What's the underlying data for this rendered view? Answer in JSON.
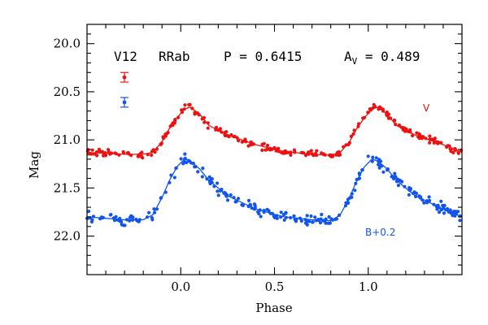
{
  "chart_data": {
    "type": "scatter",
    "title": "",
    "xlabel": "Phase",
    "ylabel": "Mag",
    "xlim": [
      -0.5,
      1.5
    ],
    "ylim": [
      22.4,
      19.8
    ],
    "y_inverted": true,
    "x_ticks": [
      "0.0",
      "0.5",
      "1.0"
    ],
    "x_tick_values": [
      0.0,
      0.5,
      1.0
    ],
    "y_ticks": [
      "20.0",
      "20.5",
      "21.0",
      "21.5",
      "22.0"
    ],
    "y_tick_values": [
      20.0,
      20.5,
      21.0,
      21.5,
      22.0
    ],
    "grid": false,
    "annotations": {
      "star": "V12",
      "type": "RRab",
      "period": "P = 0.6415",
      "amp_label": "A",
      "amp_sub": "V",
      "amp_value": " = 0.489"
    },
    "series": [
      {
        "name": "V",
        "label": "V",
        "color": "#ee1111",
        "error_bar": 0.05,
        "curve": [
          [
            -0.5,
            21.13
          ],
          [
            -0.3,
            21.15
          ],
          [
            -0.2,
            21.15
          ],
          [
            -0.15,
            21.13
          ],
          [
            -0.1,
            21.02
          ],
          [
            -0.06,
            20.88
          ],
          [
            -0.02,
            20.77
          ],
          [
            0.02,
            20.68
          ],
          [
            0.05,
            20.66
          ],
          [
            0.1,
            20.73
          ],
          [
            0.15,
            20.85
          ],
          [
            0.25,
            20.95
          ],
          [
            0.4,
            21.05
          ],
          [
            0.55,
            21.12
          ],
          [
            0.7,
            21.15
          ],
          [
            0.8,
            21.16
          ],
          [
            0.85,
            21.13
          ],
          [
            0.9,
            21.02
          ],
          [
            0.94,
            20.88
          ],
          [
            0.98,
            20.77
          ],
          [
            1.02,
            20.68
          ],
          [
            1.05,
            20.66
          ],
          [
            1.1,
            20.73
          ],
          [
            1.15,
            20.85
          ],
          [
            1.25,
            20.95
          ],
          [
            1.4,
            21.05
          ],
          [
            1.5,
            21.13
          ]
        ]
      },
      {
        "name": "B+0.2",
        "label": "B+0.2",
        "color": "#1155ee",
        "error_bar": 0.05,
        "curve": [
          [
            -0.5,
            21.8
          ],
          [
            -0.3,
            21.83
          ],
          [
            -0.2,
            21.83
          ],
          [
            -0.15,
            21.78
          ],
          [
            -0.1,
            21.6
          ],
          [
            -0.06,
            21.42
          ],
          [
            -0.02,
            21.28
          ],
          [
            0.02,
            21.2
          ],
          [
            0.05,
            21.22
          ],
          [
            0.1,
            21.3
          ],
          [
            0.15,
            21.42
          ],
          [
            0.25,
            21.58
          ],
          [
            0.4,
            21.72
          ],
          [
            0.55,
            21.8
          ],
          [
            0.7,
            21.83
          ],
          [
            0.8,
            21.84
          ],
          [
            0.85,
            21.78
          ],
          [
            0.9,
            21.6
          ],
          [
            0.94,
            21.42
          ],
          [
            0.98,
            21.28
          ],
          [
            1.02,
            21.2
          ],
          [
            1.05,
            21.22
          ],
          [
            1.1,
            21.3
          ],
          [
            1.15,
            21.42
          ],
          [
            1.25,
            21.58
          ],
          [
            1.4,
            21.72
          ],
          [
            1.5,
            21.8
          ]
        ]
      }
    ]
  }
}
